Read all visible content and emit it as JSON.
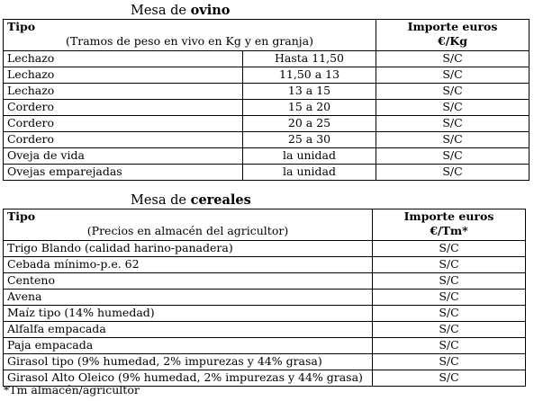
{
  "ovino": {
    "title_prefix": "Mesa de ",
    "title_bold": "ovino",
    "header": {
      "col1_title": "Tipo",
      "col1_sub": "(Tramos de peso en vivo en Kg y en granja)",
      "col3_line1": "Importe euros",
      "col3_line2": "€/Kg"
    },
    "rows": [
      {
        "tipo": "Lechazo",
        "tramo": "Hasta 11,50",
        "importe": "S/C"
      },
      {
        "tipo": "Lechazo",
        "tramo": "11,50 a 13",
        "importe": "S/C"
      },
      {
        "tipo": "Lechazo",
        "tramo": "13 a 15",
        "importe": "S/C"
      },
      {
        "tipo": "Cordero",
        "tramo": "15 a 20",
        "importe": "S/C"
      },
      {
        "tipo": "Cordero",
        "tramo": "20 a 25",
        "importe": "S/C"
      },
      {
        "tipo": "Cordero",
        "tramo": "25 a 30",
        "importe": "S/C"
      },
      {
        "tipo": "Oveja de vida",
        "tramo": "la unidad",
        "importe": "S/C"
      },
      {
        "tipo": "Ovejas emparejadas",
        "tramo": "la unidad",
        "importe": "S/C"
      }
    ]
  },
  "cereales": {
    "title_prefix": "Mesa de ",
    "title_bold": "cereales",
    "header": {
      "col1_title": "Tipo",
      "col1_sub": "(Precios en almacén del agricultor)",
      "col2_line1": "Importe euros",
      "col2_line2": "€/Tm*"
    },
    "rows": [
      {
        "tipo": "Trigo Blando (calidad harino-panadera)",
        "importe": "S/C"
      },
      {
        "tipo": "Cebada mínimo-p.e. 62",
        "importe": "S/C"
      },
      {
        "tipo": "Centeno",
        "importe": "S/C"
      },
      {
        "tipo": "Avena",
        "importe": "S/C"
      },
      {
        "tipo": "Maíz tipo (14% humedad)",
        "importe": "S/C"
      },
      {
        "tipo": "Alfalfa empacada",
        "importe": "S/C"
      },
      {
        "tipo": "Paja empacada",
        "importe": "S/C"
      },
      {
        "tipo": "Girasol tipo (9% humedad, 2% impurezas y 44% grasa)",
        "importe": "S/C"
      },
      {
        "tipo": "Girasol Alto Oleico (9% humedad, 2% impurezas y 44% grasa)",
        "importe": "S/C"
      }
    ],
    "footnote": "*Tm almacén/agricultor"
  }
}
